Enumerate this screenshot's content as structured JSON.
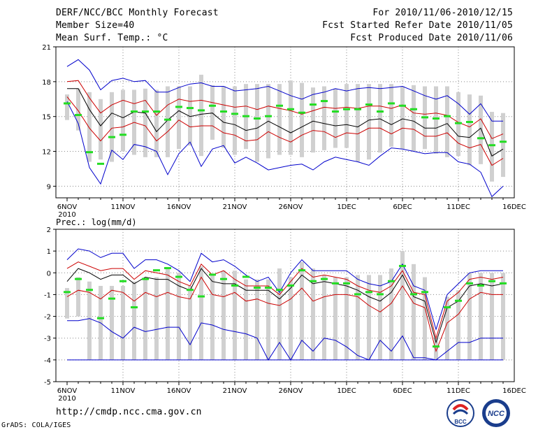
{
  "header": {
    "title": "DERF/NCC/BCC Monthly Forecast",
    "member": "Member Size=40",
    "variable": "Mean Surf. Temp.: °C",
    "period": "For 2010/11/06-2010/12/15",
    "refer_date": "Fcst Started Refer Date 2010/11/05",
    "produced_date": "Fcst Produced Date 2010/11/06"
  },
  "footer": {
    "url": "http://cmdp.ncc.cma.gov.cn",
    "credit": "GrADS: COLA/IGES",
    "logo_bcc": "BCC",
    "logo_ncc": "NCC"
  },
  "colors": {
    "ensemble_mean": "#000000",
    "one_sigma": "#cc0000",
    "extremes": "#0000cc",
    "observation": "#22dd22",
    "box": "#d0d0d0"
  },
  "chart_data": [
    {
      "type": "line",
      "title": "Mean Surf. Temp.: °C",
      "x_tick_labels": [
        "6NOV",
        "11NOV",
        "16NOV",
        "21NOV",
        "26NOV",
        "1DEC",
        "6DEC",
        "11DEC",
        "16DEC"
      ],
      "x_first_label_sub": "2010",
      "ylim": [
        8,
        21
      ],
      "y_ticks": [
        9,
        12,
        15,
        18,
        21
      ],
      "grid": true,
      "x": [
        0,
        1,
        2,
        3,
        4,
        5,
        6,
        7,
        8,
        9,
        10,
        11,
        12,
        13,
        14,
        15,
        16,
        17,
        18,
        19,
        20,
        21,
        22,
        23,
        24,
        25,
        26,
        27,
        28,
        29,
        30,
        31,
        32,
        33,
        34,
        35,
        36,
        37,
        38,
        39
      ],
      "series": [
        {
          "name": "max",
          "values": [
            19.3,
            19.9,
            19.0,
            17.3,
            18.1,
            18.3,
            18.0,
            18.1,
            17.1,
            17.1,
            17.5,
            17.8,
            17.9,
            17.6,
            17.6,
            17.2,
            17.3,
            17.4,
            17.6,
            17.2,
            16.8,
            16.5,
            16.9,
            17.1,
            17.4,
            17.2,
            17.4,
            17.5,
            17.4,
            17.5,
            17.6,
            17.2,
            16.8,
            16.5,
            16.8,
            16.1,
            15.2,
            16.1,
            14.6,
            14.6
          ]
        },
        {
          "name": "mean+sd",
          "values": [
            18.0,
            18.1,
            16.6,
            15.3,
            16.0,
            16.4,
            16.1,
            16.4,
            15.1,
            16.0,
            16.5,
            16.3,
            16.4,
            16.2,
            16.0,
            15.8,
            15.9,
            15.6,
            15.9,
            15.7,
            15.5,
            15.2,
            15.5,
            15.8,
            15.7,
            15.8,
            15.7,
            15.9,
            15.9,
            15.7,
            16.0,
            15.3,
            15.2,
            15.3,
            15.1,
            14.5,
            14.1,
            14.8,
            13.1,
            13.5
          ]
        },
        {
          "name": "mean",
          "values": [
            17.4,
            17.4,
            15.6,
            14.2,
            15.3,
            14.9,
            15.4,
            15.3,
            13.7,
            14.7,
            15.5,
            15.0,
            15.2,
            15.3,
            14.5,
            14.3,
            13.8,
            14.0,
            14.6,
            14.1,
            13.6,
            14.1,
            14.6,
            14.4,
            14.2,
            14.3,
            14.1,
            14.7,
            14.8,
            14.3,
            14.8,
            14.6,
            14.0,
            14.0,
            14.4,
            13.3,
            13.2,
            14.0,
            11.6,
            12.2
          ]
        },
        {
          "name": "mean-sd",
          "values": [
            16.7,
            15.5,
            14.0,
            12.9,
            14.0,
            14.1,
            14.5,
            14.2,
            12.9,
            13.7,
            14.7,
            14.1,
            14.2,
            14.2,
            13.6,
            13.4,
            12.9,
            13.0,
            13.7,
            13.2,
            12.8,
            13.4,
            13.8,
            13.7,
            13.2,
            13.6,
            13.5,
            14.0,
            14.0,
            13.5,
            14.0,
            13.9,
            13.3,
            13.3,
            13.6,
            12.7,
            12.3,
            12.6,
            10.8,
            11.4
          ]
        },
        {
          "name": "min",
          "values": [
            16.3,
            14.4,
            10.6,
            9.2,
            12.1,
            11.3,
            12.6,
            12.4,
            12.0,
            10.0,
            11.8,
            12.8,
            10.7,
            12.2,
            12.5,
            11.0,
            11.5,
            11.0,
            10.4,
            10.6,
            10.8,
            10.9,
            10.4,
            11.1,
            11.5,
            11.3,
            11.1,
            10.8,
            11.6,
            12.3,
            12.2,
            12.0,
            11.8,
            11.9,
            11.9,
            11.1,
            10.9,
            10.2,
            8.1,
            9.0
          ]
        },
        {
          "name": "obs",
          "values": [
            16.1,
            15.1,
            11.9,
            10.9,
            13.2,
            13.4,
            15.4,
            15.4,
            15.4,
            14.7,
            15.8,
            15.7,
            15.5,
            15.9,
            15.4,
            15.2,
            15.0,
            14.8,
            15.0,
            15.9,
            15.6,
            15.3,
            16.0,
            16.3,
            15.4,
            15.6,
            15.6,
            16.0,
            15.4,
            16.1,
            15.9,
            15.6,
            14.9,
            14.8,
            15.0,
            14.4,
            14.5,
            13.1,
            12.5,
            12.8
          ]
        },
        {
          "name": "box_high",
          "values": [
            16.9,
            17.4,
            17.1,
            16.5,
            17.1,
            17.3,
            17.3,
            17.4,
            17.3,
            17.6,
            17.6,
            17.6,
            18.6,
            17.7,
            17.6,
            17.6,
            17.8,
            17.8,
            17.8,
            17.8,
            18.1,
            17.9,
            17.5,
            17.6,
            17.4,
            17.8,
            17.8,
            17.8,
            17.8,
            17.8,
            17.6,
            17.7,
            17.6,
            17.6,
            17.6,
            17.1,
            16.9,
            16.8,
            15.4,
            15.3
          ]
        },
        {
          "name": "box_low",
          "values": [
            14.7,
            13.8,
            11.1,
            11.3,
            11.1,
            12.0,
            11.7,
            11.5,
            11.5,
            11.5,
            12.2,
            12.5,
            11.6,
            13.0,
            12.3,
            11.7,
            12.2,
            11.1,
            11.4,
            11.7,
            11.7,
            11.5,
            11.9,
            12.1,
            12.3,
            12.3,
            11.1,
            11.3,
            11.9,
            12.4,
            12.2,
            12.0,
            12.2,
            11.8,
            11.5,
            11.6,
            10.8,
            10.9,
            9.4,
            9.8
          ]
        }
      ]
    },
    {
      "type": "line",
      "title": "Prec.: log(mm/d)",
      "x_tick_labels": [
        "6NOV",
        "11NOV",
        "16NOV",
        "21NOV",
        "26NOV",
        "1DEC",
        "6DEC",
        "11DEC",
        "16DEC"
      ],
      "x_first_label_sub": "2010",
      "ylim": [
        -5,
        2
      ],
      "y_ticks": [
        -5,
        -4,
        -3,
        -2,
        -1,
        0,
        1,
        2
      ],
      "grid": true,
      "x": [
        0,
        1,
        2,
        3,
        4,
        5,
        6,
        7,
        8,
        9,
        10,
        11,
        12,
        13,
        14,
        15,
        16,
        17,
        18,
        19,
        20,
        21,
        22,
        23,
        24,
        25,
        26,
        27,
        28,
        29,
        30,
        31,
        32,
        33,
        34,
        35,
        36,
        37,
        38,
        39
      ],
      "series": [
        {
          "name": "max",
          "values": [
            0.6,
            1.1,
            1.0,
            0.7,
            0.9,
            0.9,
            0.2,
            0.6,
            0.6,
            0.4,
            0.1,
            -0.4,
            0.9,
            0.5,
            0.6,
            0.3,
            -0.1,
            -0.4,
            -0.2,
            -0.9,
            0.0,
            0.6,
            0.1,
            0.1,
            0.1,
            0.1,
            -0.3,
            -0.5,
            -0.6,
            -0.4,
            0.4,
            -0.6,
            -0.8,
            -2.6,
            -1.0,
            -0.5,
            0.0,
            0.1,
            0.1,
            0.1
          ]
        },
        {
          "name": "mean+sd",
          "values": [
            0.2,
            0.5,
            0.3,
            0.1,
            0.2,
            0.2,
            -0.3,
            0.1,
            0.0,
            -0.1,
            -0.4,
            -0.6,
            0.4,
            -0.1,
            0.1,
            -0.3,
            -0.6,
            -0.6,
            -0.6,
            -1.0,
            -0.4,
            0.2,
            -0.2,
            -0.1,
            -0.2,
            -0.3,
            -0.6,
            -0.8,
            -0.9,
            -0.6,
            0.1,
            -0.9,
            -1.0,
            -3.0,
            -1.3,
            -0.9,
            -0.3,
            -0.2,
            -0.3,
            -0.2
          ]
        },
        {
          "name": "mean",
          "values": [
            -0.4,
            0.2,
            0.0,
            -0.3,
            -0.1,
            -0.1,
            -0.5,
            -0.2,
            -0.3,
            -0.3,
            -0.6,
            -0.8,
            0.2,
            -0.4,
            -0.5,
            -0.5,
            -0.8,
            -0.8,
            -0.8,
            -1.2,
            -0.7,
            -0.1,
            -0.5,
            -0.4,
            -0.5,
            -0.6,
            -0.8,
            -1.1,
            -1.3,
            -0.9,
            -0.1,
            -1.1,
            -1.3,
            -3.2,
            -1.6,
            -1.3,
            -0.6,
            -0.5,
            -0.6,
            -0.5
          ]
        },
        {
          "name": "mean-sd",
          "values": [
            -1.1,
            -0.8,
            -0.9,
            -1.2,
            -0.8,
            -0.9,
            -1.3,
            -0.9,
            -1.1,
            -0.9,
            -1.1,
            -1.2,
            -0.2,
            -1.0,
            -1.1,
            -0.9,
            -1.3,
            -1.2,
            -1.4,
            -1.5,
            -1.2,
            -0.7,
            -1.3,
            -1.1,
            -1.0,
            -1.0,
            -1.1,
            -1.5,
            -1.8,
            -1.4,
            -0.6,
            -1.4,
            -1.6,
            -3.6,
            -2.3,
            -1.9,
            -1.2,
            -0.9,
            -1.0,
            -1.0
          ]
        },
        {
          "name": "min",
          "values": [
            -2.2,
            -2.2,
            -2.1,
            -2.3,
            -2.7,
            -3.0,
            -2.5,
            -2.7,
            -2.6,
            -2.5,
            -2.5,
            -3.3,
            -2.3,
            -2.4,
            -2.6,
            -2.7,
            -2.8,
            -3.0,
            -4.0,
            -3.2,
            -4.0,
            -3.1,
            -3.6,
            -3.0,
            -3.1,
            -3.4,
            -3.8,
            -4.0,
            -3.1,
            -3.6,
            -2.9,
            -3.9,
            -3.9,
            -4.0,
            -3.6,
            -3.2,
            -3.2,
            -3.0,
            -3.0,
            -3.0
          ]
        },
        {
          "name": "floor",
          "values": [
            -4.0,
            -4.0,
            -4.0,
            -4.0,
            -4.0,
            -4.0,
            -4.0,
            -4.0,
            -4.0,
            -4.0,
            -4.0,
            -4.0,
            -4.0,
            -4.0,
            -4.0,
            -4.0,
            -4.0,
            -4.0,
            -4.0,
            -4.0,
            -4.0,
            -4.0,
            -4.0,
            -4.0,
            -4.0,
            -4.0,
            -4.0,
            -4.0,
            -4.0,
            -4.0,
            -4.0,
            -4.0,
            -4.0,
            -4.0,
            -4.0,
            -4.0,
            -4.0,
            -4.0,
            -4.0,
            -4.0
          ]
        },
        {
          "name": "obs",
          "values": [
            -0.9,
            -0.3,
            -0.8,
            -2.1,
            -1.2,
            -0.4,
            -1.6,
            -0.3,
            0.1,
            0.2,
            -0.2,
            -0.8,
            -1.1,
            -0.1,
            -0.3,
            -0.6,
            -0.2,
            -0.7,
            -0.7,
            -0.8,
            -0.6,
            0.1,
            -0.4,
            -0.3,
            -0.5,
            -0.5,
            -1.0,
            -0.9,
            -1.0,
            -0.4,
            0.3,
            -1.0,
            -0.9,
            -3.4,
            -1.6,
            -1.3,
            -0.5,
            -0.6,
            -0.4,
            -0.5
          ]
        },
        {
          "name": "box_high",
          "values": [
            -0.7,
            -0.2,
            -0.4,
            -0.6,
            -0.6,
            -0.6,
            -0.4,
            -0.3,
            -0.2,
            0.2,
            0.0,
            -0.6,
            0.3,
            -0.1,
            0.1,
            0.1,
            -0.3,
            -0.3,
            -0.3,
            0.2,
            -0.2,
            0.5,
            0.2,
            -0.1,
            -0.2,
            -0.2,
            -0.1,
            -0.1,
            -0.1,
            0.2,
            1.0,
            0.4,
            -0.2,
            -3.0,
            -1.1,
            -0.8,
            0.0,
            0.0,
            0.0,
            0.0
          ]
        },
        {
          "name": "box_low",
          "values": [
            -2.1,
            -2.0,
            -4.0,
            -4.0,
            -4.0,
            -4.0,
            -4.0,
            -4.0,
            -4.0,
            -4.0,
            -4.0,
            -4.0,
            -4.0,
            -4.0,
            -4.0,
            -4.0,
            -4.0,
            -4.0,
            -4.0,
            -4.0,
            -4.0,
            -4.0,
            -4.0,
            -4.0,
            -4.0,
            -4.0,
            -4.0,
            -4.0,
            -4.0,
            -4.0,
            -4.0,
            -4.0,
            -4.0,
            -4.0,
            -4.0,
            -4.0,
            -4.0,
            -4.0,
            -4.0,
            -4.0
          ]
        }
      ]
    }
  ]
}
